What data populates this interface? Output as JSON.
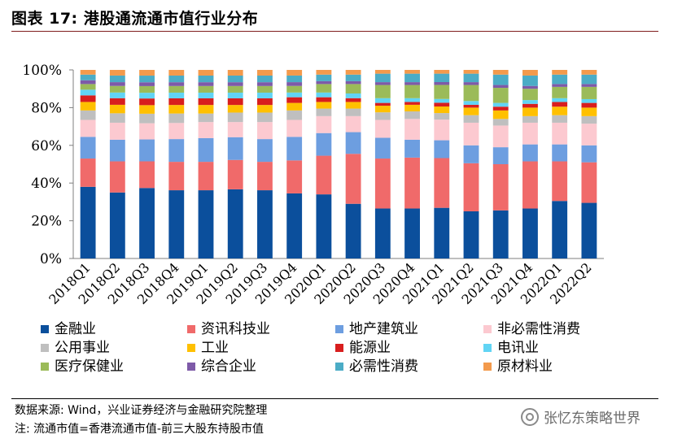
{
  "header": {
    "title": "图表 17:  港股通流通市值行业分布"
  },
  "footer": {
    "source": "数据来源:  Wind，兴业证券经济与金融研究院整理",
    "note": "注:  流通市值=香港流通市值-前三大股东持股市值",
    "watermark": "张忆东策略世界"
  },
  "chart_data": {
    "type": "bar",
    "stacked": true,
    "title": "港股通流通市值行业分布",
    "xlabel": "",
    "ylabel": "",
    "ylim": [
      0,
      100
    ],
    "yticks": [
      "0%",
      "20%",
      "40%",
      "60%",
      "80%",
      "100%"
    ],
    "categories": [
      "2018Q1",
      "2018Q2",
      "2018Q3",
      "2018Q4",
      "2019Q1",
      "2019Q2",
      "2019Q3",
      "2019Q4",
      "2020Q1",
      "2020Q2",
      "2020Q3",
      "2020Q4",
      "2021Q1",
      "2021Q2",
      "2021Q3",
      "2021Q4",
      "2022Q1",
      "2022Q2"
    ],
    "series": [
      {
        "name": "金融业",
        "color": "#0b4f9c",
        "values": [
          38,
          35,
          37,
          36,
          36,
          36.5,
          36,
          34.5,
          34,
          29,
          26.5,
          26.5,
          27,
          25,
          25.5,
          26.5,
          30.5,
          29.5
        ]
      },
      {
        "name": "资讯科技业",
        "color": "#f06a6a",
        "values": [
          15,
          16.5,
          14,
          15,
          15,
          15.5,
          15,
          17.5,
          20.5,
          26.5,
          26.5,
          27,
          26.5,
          25.5,
          24.5,
          25,
          21,
          21.5
        ]
      },
      {
        "name": "地产建筑业",
        "color": "#6d9ee0",
        "values": [
          11.5,
          11.5,
          11.5,
          12,
          12.5,
          12,
          12,
          12.5,
          12,
          11.5,
          11,
          9.5,
          9.5,
          9.5,
          9,
          9,
          9,
          9
        ]
      },
      {
        "name": "非必需性消费",
        "color": "#fcc9d0",
        "values": [
          9,
          9,
          8.5,
          8.5,
          8.5,
          8,
          9,
          9,
          9,
          8.5,
          9.5,
          11,
          11,
          12,
          11.5,
          11.5,
          11.5,
          11.5
        ]
      },
      {
        "name": "公用事业",
        "color": "#bfbfbf",
        "values": [
          5,
          5,
          5,
          5,
          4.5,
          5,
          5,
          5,
          4,
          4,
          4,
          4,
          3.5,
          4,
          3.5,
          3.5,
          4,
          4
        ]
      },
      {
        "name": "工业",
        "color": "#ffc000",
        "values": [
          4.5,
          4.5,
          4.5,
          4.5,
          4.5,
          4,
          4,
          4,
          3.5,
          3.5,
          3.5,
          3.5,
          3.5,
          4,
          4.5,
          4.5,
          4.5,
          4.5
        ]
      },
      {
        "name": "能源业",
        "color": "#d81e1e",
        "values": [
          3.5,
          3.5,
          3.5,
          3.5,
          3.5,
          3.5,
          3.5,
          3,
          2.5,
          2,
          1.5,
          1.5,
          2,
          1.5,
          2,
          2,
          2.5,
          2.5
        ]
      },
      {
        "name": "电讯业",
        "color": "#61d4f4",
        "values": [
          3,
          3,
          3,
          3,
          3,
          3,
          3,
          2.5,
          2.5,
          2.5,
          2.5,
          2,
          2,
          2,
          2,
          2,
          2,
          2
        ]
      },
      {
        "name": "医疗保健业",
        "color": "#9bbb59",
        "values": [
          3,
          3.5,
          3.5,
          3.5,
          3.5,
          3.5,
          3.5,
          3.5,
          4.5,
          5,
          7,
          7,
          7.5,
          8.5,
          8,
          6,
          6,
          6.5
        ]
      },
      {
        "name": "综合企业",
        "color": "#7e5aa8",
        "values": [
          2,
          2,
          2,
          2,
          2,
          2,
          2,
          2,
          1.5,
          1.5,
          1.5,
          1.5,
          1.5,
          1.5,
          1.5,
          1.5,
          1.5,
          1.5
        ]
      },
      {
        "name": "必需性消费",
        "color": "#4bacc6",
        "values": [
          3,
          3.5,
          3.5,
          3.5,
          3.5,
          3.5,
          3.5,
          3.5,
          3.5,
          3.5,
          4.5,
          4.5,
          4.5,
          4.5,
          5.5,
          5.5,
          5,
          5
        ]
      },
      {
        "name": "原材料业",
        "color": "#f39a4c",
        "values": [
          2.5,
          3,
          3,
          3,
          3,
          3,
          3,
          3,
          2.5,
          2.5,
          2,
          2,
          2,
          2,
          2.5,
          3,
          2.5,
          2.5
        ]
      }
    ],
    "legend_position": "bottom"
  }
}
